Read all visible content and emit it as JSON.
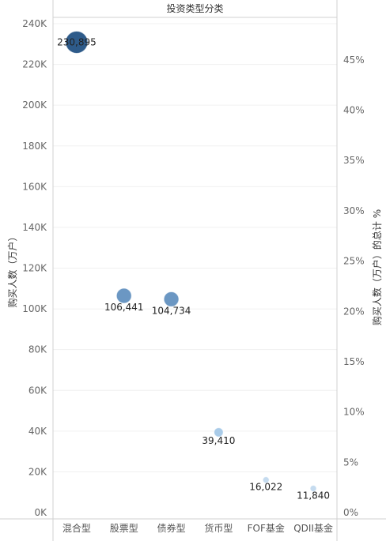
{
  "chart_data": {
    "type": "scatter",
    "header": "投资类型分类",
    "categories": [
      "混合型",
      "股票型",
      "债券型",
      "货币型",
      "FOF基金",
      "QDII基金"
    ],
    "values": [
      230895,
      106441,
      104734,
      39410,
      16022,
      11840
    ],
    "value_labels": [
      "230,895",
      "106,441",
      "104,734",
      "39,410",
      "16,022",
      "11,840"
    ],
    "ylabel": "购买人数（万户）",
    "y2label": "购买人数（万户）的总计 %",
    "ylim": [
      0,
      240000
    ],
    "y2lim": [
      0,
      0.486
    ],
    "y_ticks": [
      "0K",
      "20K",
      "40K",
      "60K",
      "80K",
      "100K",
      "120K",
      "140K",
      "160K",
      "180K",
      "200K",
      "220K",
      "240K"
    ],
    "y_tick_values": [
      0,
      20000,
      40000,
      60000,
      80000,
      100000,
      120000,
      140000,
      160000,
      180000,
      200000,
      220000,
      240000
    ],
    "y2_ticks": [
      "0%",
      "5%",
      "10%",
      "15%",
      "20%",
      "25%",
      "30%",
      "35%",
      "40%",
      "45%"
    ],
    "y2_tick_values": [
      0,
      0.05,
      0.1,
      0.15,
      0.2,
      0.25,
      0.3,
      0.35,
      0.4,
      0.45
    ],
    "colors": [
      "#2e5b8a",
      "#6b97c3",
      "#6b97c3",
      "#a9cbe8",
      "#c5dbef",
      "#c5dbef"
    ],
    "grid": true
  }
}
